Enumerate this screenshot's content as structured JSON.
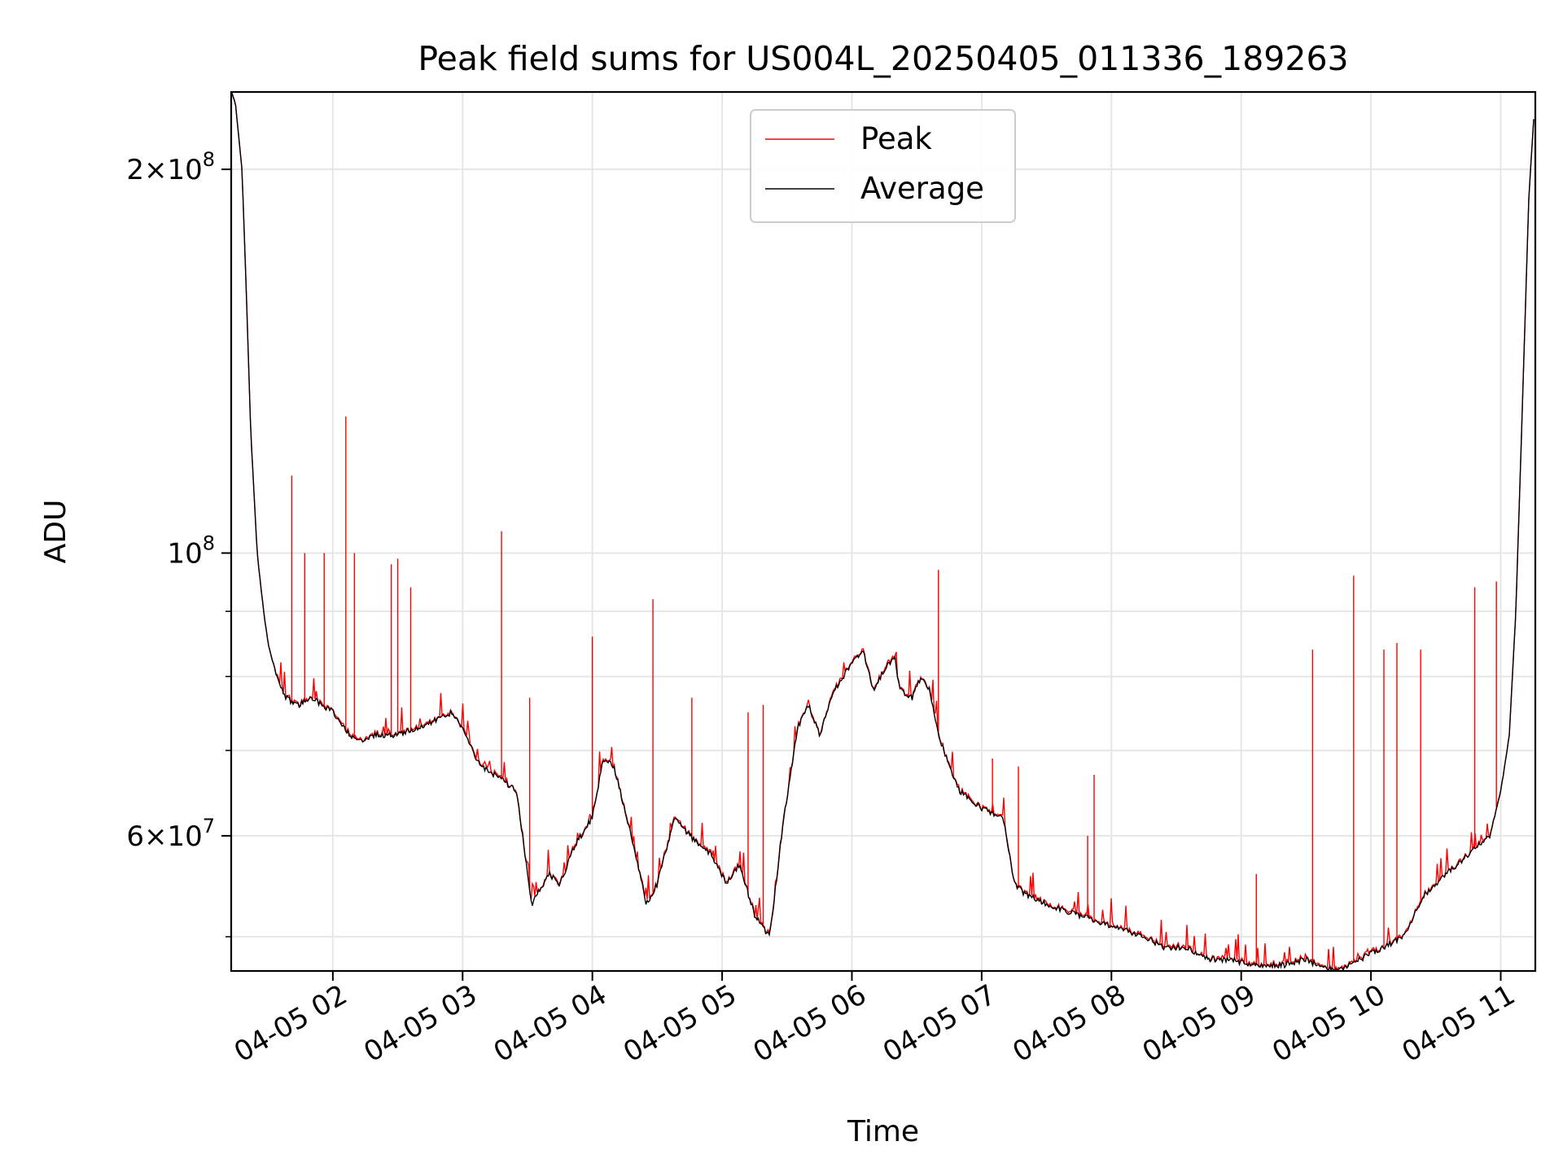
{
  "chart_data": {
    "type": "line",
    "title": "Peak field sums for US004L_20250405_011336_189263",
    "xlabel": "Time",
    "ylabel": "ADU",
    "yscale": "log",
    "ylim": [
      47000000,
      230000000
    ],
    "xlim": [
      "2025-04-05 01:13",
      "2025-04-05 11:16"
    ],
    "grid": true,
    "legend_position": "top-center",
    "x_ticks": [
      {
        "time": "2025-04-05 02:00",
        "label": "04-05 02"
      },
      {
        "time": "2025-04-05 03:00",
        "label": "04-05 03"
      },
      {
        "time": "2025-04-05 04:00",
        "label": "04-05 04"
      },
      {
        "time": "2025-04-05 05:00",
        "label": "04-05 05"
      },
      {
        "time": "2025-04-05 06:00",
        "label": "04-05 06"
      },
      {
        "time": "2025-04-05 07:00",
        "label": "04-05 07"
      },
      {
        "time": "2025-04-05 08:00",
        "label": "04-05 08"
      },
      {
        "time": "2025-04-05 09:00",
        "label": "04-05 09"
      },
      {
        "time": "2025-04-05 10:00",
        "label": "04-05 10"
      },
      {
        "time": "2025-04-05 11:00",
        "label": "04-05 11"
      }
    ],
    "y_major_ticks": [
      {
        "value": 60000000,
        "mantissa": "6",
        "exp": "7"
      },
      {
        "value": 100000000,
        "mantissa": "",
        "exp": "8"
      },
      {
        "value": 200000000,
        "mantissa": "2",
        "exp": "8"
      }
    ],
    "y_minor_ticks": [
      50000000,
      70000000,
      80000000,
      90000000
    ],
    "series": [
      {
        "name": "Average",
        "color": "#000000",
        "x": [
          "2025-04-05 01:13",
          "2025-04-05 01:15",
          "2025-04-05 01:18",
          "2025-04-05 01:20",
          "2025-04-05 01:22",
          "2025-04-05 01:25",
          "2025-04-05 01:28",
          "2025-04-05 01:30",
          "2025-04-05 01:34",
          "2025-04-05 01:38",
          "2025-04-05 01:44",
          "2025-04-05 01:50",
          "2025-04-05 01:55",
          "2025-04-05 02:00",
          "2025-04-05 02:08",
          "2025-04-05 02:12",
          "2025-04-05 02:20",
          "2025-04-05 02:30",
          "2025-04-05 02:40",
          "2025-04-05 02:48",
          "2025-04-05 02:55",
          "2025-04-05 03:00",
          "2025-04-05 03:08",
          "2025-04-05 03:15",
          "2025-04-05 03:20",
          "2025-04-05 03:25",
          "2025-04-05 03:32",
          "2025-04-05 03:40",
          "2025-04-05 03:45",
          "2025-04-05 03:52",
          "2025-04-05 04:00",
          "2025-04-05 04:05",
          "2025-04-05 04:10",
          "2025-04-05 04:18",
          "2025-04-05 04:25",
          "2025-04-05 04:30",
          "2025-04-05 04:38",
          "2025-04-05 04:45",
          "2025-04-05 04:50",
          "2025-04-05 04:55",
          "2025-04-05 05:02",
          "2025-04-05 05:08",
          "2025-04-05 05:15",
          "2025-04-05 05:22",
          "2025-04-05 05:28",
          "2025-04-05 05:35",
          "2025-04-05 05:40",
          "2025-04-05 05:45",
          "2025-04-05 05:52",
          "2025-04-05 06:00",
          "2025-04-05 06:05",
          "2025-04-05 06:10",
          "2025-04-05 06:15",
          "2025-04-05 06:20",
          "2025-04-05 06:22",
          "2025-04-05 06:28",
          "2025-04-05 06:32",
          "2025-04-05 06:36",
          "2025-04-05 06:40",
          "2025-04-05 06:45",
          "2025-04-05 06:50",
          "2025-04-05 06:55",
          "2025-04-05 07:00",
          "2025-04-05 07:10",
          "2025-04-05 07:15",
          "2025-04-05 07:20",
          "2025-04-05 07:30",
          "2025-04-05 07:45",
          "2025-04-05 08:00",
          "2025-04-05 08:15",
          "2025-04-05 08:25",
          "2025-04-05 08:35",
          "2025-04-05 08:45",
          "2025-04-05 08:55",
          "2025-04-05 09:05",
          "2025-04-05 09:15",
          "2025-04-05 09:20",
          "2025-04-05 09:30",
          "2025-04-05 09:35",
          "2025-04-05 09:45",
          "2025-04-05 09:55",
          "2025-04-05 10:05",
          "2025-04-05 10:15",
          "2025-04-05 10:25",
          "2025-04-05 10:35",
          "2025-04-05 10:45",
          "2025-04-05 10:55",
          "2025-04-05 11:00",
          "2025-04-05 11:04",
          "2025-04-05 11:07",
          "2025-04-05 11:10",
          "2025-04-05 11:13",
          "2025-04-05 11:16"
        ],
        "y": [
          230000000,
          225000000,
          200000000,
          160000000,
          125000000,
          100000000,
          90000000,
          85000000,
          80000000,
          77000000,
          76000000,
          77000000,
          76000000,
          75000000,
          72000000,
          71000000,
          72000000,
          72000000,
          73000000,
          74000000,
          75000000,
          73000000,
          68000000,
          67000000,
          66000000,
          65000000,
          53000000,
          56000000,
          55000000,
          59000000,
          62000000,
          69000000,
          68000000,
          60000000,
          53000000,
          55000000,
          62000000,
          60000000,
          59000000,
          58000000,
          55000000,
          57000000,
          52000000,
          50000000,
          61000000,
          73000000,
          76000000,
          72000000,
          78000000,
          82000000,
          84000000,
          78000000,
          81000000,
          83000000,
          78000000,
          77000000,
          80000000,
          78000000,
          72000000,
          68000000,
          65000000,
          64000000,
          63000000,
          62000000,
          55000000,
          54000000,
          53000000,
          52000000,
          51000000,
          50000000,
          49000000,
          49000000,
          48000000,
          48000000,
          47500000,
          47500000,
          47500000,
          48000000,
          47500000,
          47000000,
          48000000,
          49000000,
          50000000,
          54000000,
          56000000,
          58000000,
          60000000,
          65000000,
          72000000,
          90000000,
          130000000,
          190000000,
          230000000
        ]
      },
      {
        "name": "Peak",
        "color": "#ff0000",
        "spikes": [
          {
            "x": "2025-04-05 01:41",
            "y": 115000000
          },
          {
            "x": "2025-04-05 01:47",
            "y": 100000000
          },
          {
            "x": "2025-04-05 01:56",
            "y": 100000000
          },
          {
            "x": "2025-04-05 02:06",
            "y": 128000000
          },
          {
            "x": "2025-04-05 02:10",
            "y": 100000000
          },
          {
            "x": "2025-04-05 02:27",
            "y": 98000000
          },
          {
            "x": "2025-04-05 02:30",
            "y": 99000000
          },
          {
            "x": "2025-04-05 02:36",
            "y": 94000000
          },
          {
            "x": "2025-04-05 03:18",
            "y": 104000000
          },
          {
            "x": "2025-04-05 03:31",
            "y": 77000000
          },
          {
            "x": "2025-04-05 04:00",
            "y": 86000000
          },
          {
            "x": "2025-04-05 04:28",
            "y": 92000000
          },
          {
            "x": "2025-04-05 04:46",
            "y": 77000000
          },
          {
            "x": "2025-04-05 05:12",
            "y": 75000000
          },
          {
            "x": "2025-04-05 05:19",
            "y": 76000000
          },
          {
            "x": "2025-04-05 06:40",
            "y": 97000000
          },
          {
            "x": "2025-04-05 07:05",
            "y": 69000000
          },
          {
            "x": "2025-04-05 07:17",
            "y": 68000000
          },
          {
            "x": "2025-04-05 07:49",
            "y": 60000000
          },
          {
            "x": "2025-04-05 07:52",
            "y": 67000000
          },
          {
            "x": "2025-04-05 09:07",
            "y": 56000000
          },
          {
            "x": "2025-04-05 09:33",
            "y": 84000000
          },
          {
            "x": "2025-04-05 09:52",
            "y": 96000000
          },
          {
            "x": "2025-04-05 10:06",
            "y": 84000000
          },
          {
            "x": "2025-04-05 10:12",
            "y": 85000000
          },
          {
            "x": "2025-04-05 10:23",
            "y": 84000000
          },
          {
            "x": "2025-04-05 10:48",
            "y": 94000000
          },
          {
            "x": "2025-04-05 10:58",
            "y": 95000000
          }
        ]
      }
    ]
  }
}
